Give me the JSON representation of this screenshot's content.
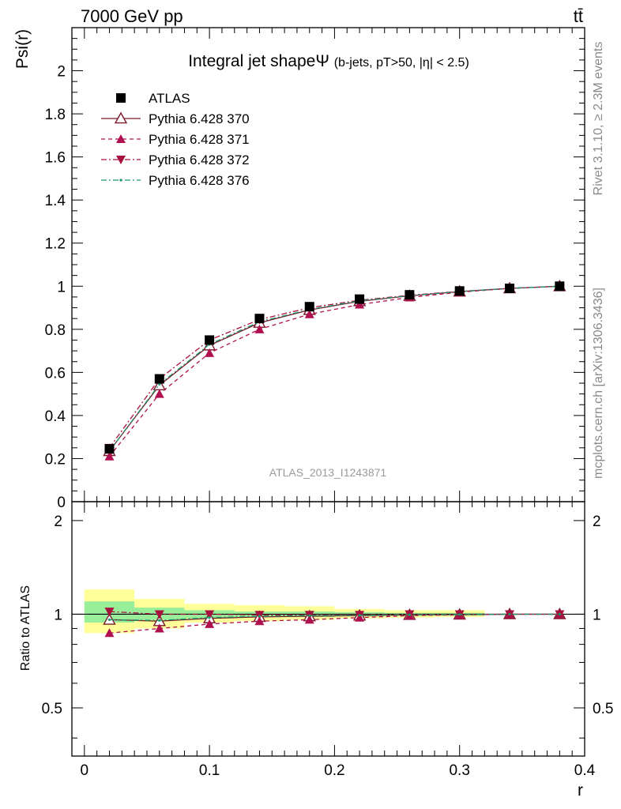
{
  "header": {
    "left": "7000 GeV pp",
    "right": "tt̄"
  },
  "side_labels": {
    "rivet": "Rivet 3.1.10, ≥ 2.3M events",
    "mcplots": "mcplots.cern.ch [arXiv:1306.3436]"
  },
  "analysis_id": "ATLAS_2013_I1243871",
  "chart_data": [
    {
      "type": "line",
      "title": "Integral jet shape",
      "title_symbol": "Ψ",
      "subtitle": "(b-jets, pT>50, |η| < 2.5)",
      "ylabel": "Psi(r)",
      "xlim": [
        -0.01,
        0.4
      ],
      "ylim": [
        0,
        2.2
      ],
      "y_ticks": [
        0,
        0.2,
        0.4,
        0.6,
        0.8,
        1,
        1.2,
        1.4,
        1.6,
        1.8,
        2
      ],
      "y_tick_labels": [
        "0",
        "0.2",
        "0.4",
        "0.6",
        "0.8",
        "1",
        "1.2",
        "1.4",
        "1.6",
        "1.8",
        "2"
      ],
      "legend_position": "top-left",
      "x": [
        0.02,
        0.06,
        0.1,
        0.14,
        0.18,
        0.22,
        0.26,
        0.3,
        0.34,
        0.38
      ],
      "series": [
        {
          "name": "ATLAS",
          "style": "data-square",
          "color": "#000000",
          "values": [
            0.245,
            0.57,
            0.75,
            0.85,
            0.905,
            0.94,
            0.96,
            0.978,
            0.99,
            1.0
          ]
        },
        {
          "name": "Pythia 6.428 370",
          "style": "solid-open-triangle",
          "color": "#7a1a2a",
          "values": [
            0.235,
            0.54,
            0.725,
            0.83,
            0.89,
            0.93,
            0.955,
            0.975,
            0.99,
            1.0
          ]
        },
        {
          "name": "Pythia 6.428 371",
          "style": "dashed-triangle",
          "color": "#b0104f",
          "values": [
            0.21,
            0.5,
            0.69,
            0.8,
            0.87,
            0.915,
            0.948,
            0.972,
            0.99,
            1.0
          ]
        },
        {
          "name": "Pythia 6.428 372",
          "style": "dashdot-down-triangle",
          "color": "#a8103e",
          "values": [
            0.25,
            0.57,
            0.75,
            0.845,
            0.9,
            0.935,
            0.958,
            0.976,
            0.99,
            1.0
          ]
        },
        {
          "name": "Pythia 6.428 376",
          "style": "dashdot-green",
          "color": "#1a9a6a",
          "values": [
            0.235,
            0.545,
            0.73,
            0.835,
            0.892,
            0.932,
            0.956,
            0.975,
            0.99,
            1.0
          ]
        }
      ]
    },
    {
      "type": "line",
      "ylabel": "Ratio to ATLAS",
      "xlabel": "r",
      "xlim": [
        -0.01,
        0.4
      ],
      "ylim": [
        0.35,
        2.3
      ],
      "y_scale": "log",
      "x_ticks": [
        0,
        0.1,
        0.2,
        0.3,
        0.4
      ],
      "x_tick_labels": [
        "0",
        "0.1",
        "0.2",
        "0.3",
        "0.4"
      ],
      "y_ticks": [
        0.5,
        1,
        2
      ],
      "y_tick_labels": [
        "0.5",
        "1",
        "2"
      ],
      "bands": [
        {
          "x_lo": 0.0,
          "x_hi": 0.04,
          "inner": [
            0.94,
            1.1
          ],
          "outer": [
            0.87,
            1.2
          ]
        },
        {
          "x_lo": 0.04,
          "x_hi": 0.08,
          "inner": [
            0.96,
            1.05
          ],
          "outer": [
            0.9,
            1.12
          ]
        },
        {
          "x_lo": 0.08,
          "x_hi": 0.12,
          "inner": [
            0.97,
            1.03
          ],
          "outer": [
            0.94,
            1.08
          ]
        },
        {
          "x_lo": 0.12,
          "x_hi": 0.16,
          "inner": [
            0.98,
            1.02
          ],
          "outer": [
            0.95,
            1.07
          ]
        },
        {
          "x_lo": 0.16,
          "x_hi": 0.2,
          "inner": [
            0.98,
            1.02
          ],
          "outer": [
            0.96,
            1.06
          ]
        },
        {
          "x_lo": 0.2,
          "x_hi": 0.24,
          "inner": [
            0.985,
            1.015
          ],
          "outer": [
            0.97,
            1.04
          ]
        },
        {
          "x_lo": 0.24,
          "x_hi": 0.28,
          "inner": [
            0.99,
            1.01
          ],
          "outer": [
            0.975,
            1.03
          ]
        },
        {
          "x_lo": 0.28,
          "x_hi": 0.32,
          "inner": [
            0.99,
            1.01
          ],
          "outer": [
            0.98,
            1.03
          ]
        }
      ],
      "x": [
        0.02,
        0.06,
        0.1,
        0.14,
        0.18,
        0.22,
        0.26,
        0.3,
        0.34,
        0.38
      ],
      "series": [
        {
          "name": "Pythia 6.428 370",
          "values": [
            0.96,
            0.95,
            0.97,
            0.98,
            0.985,
            0.99,
            0.995,
            0.997,
            1.0,
            1.0
          ]
        },
        {
          "name": "Pythia 6.428 371",
          "values": [
            0.87,
            0.9,
            0.93,
            0.95,
            0.96,
            0.975,
            0.99,
            0.995,
            1.0,
            1.0
          ]
        },
        {
          "name": "Pythia 6.428 372",
          "values": [
            1.02,
            1.0,
            1.0,
            0.995,
            0.995,
            0.995,
            1.0,
            1.0,
            1.0,
            1.0
          ]
        },
        {
          "name": "Pythia 6.428 376",
          "values": [
            0.96,
            0.955,
            0.975,
            0.985,
            0.99,
            0.992,
            0.996,
            0.998,
            1.0,
            1.0
          ]
        }
      ]
    }
  ]
}
